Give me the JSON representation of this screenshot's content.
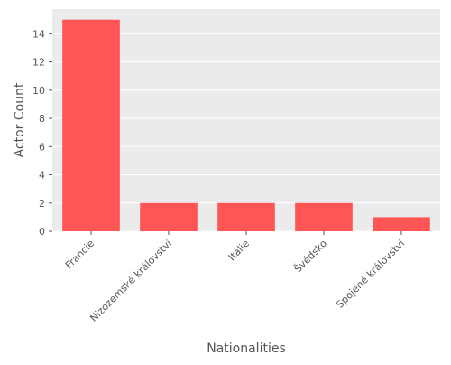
{
  "chart_data": {
    "type": "bar",
    "title": "",
    "xlabel": "Nationalities",
    "ylabel": "Actor Count",
    "categories": [
      "Francie",
      "Nizozemské království",
      "Itálie",
      "Švédsko",
      "Spojené království"
    ],
    "values": [
      15,
      2,
      2,
      2,
      1
    ],
    "ylim": [
      0,
      15.75
    ],
    "yticks": [
      0,
      2,
      4,
      6,
      8,
      10,
      12,
      14
    ],
    "grid": true,
    "legend": "none",
    "colors": {
      "bar": "#ff5555",
      "plot_background": "#ebebeb",
      "grid": "#ffffff",
      "axis_text": "#555555",
      "label_text": "#555555"
    }
  }
}
